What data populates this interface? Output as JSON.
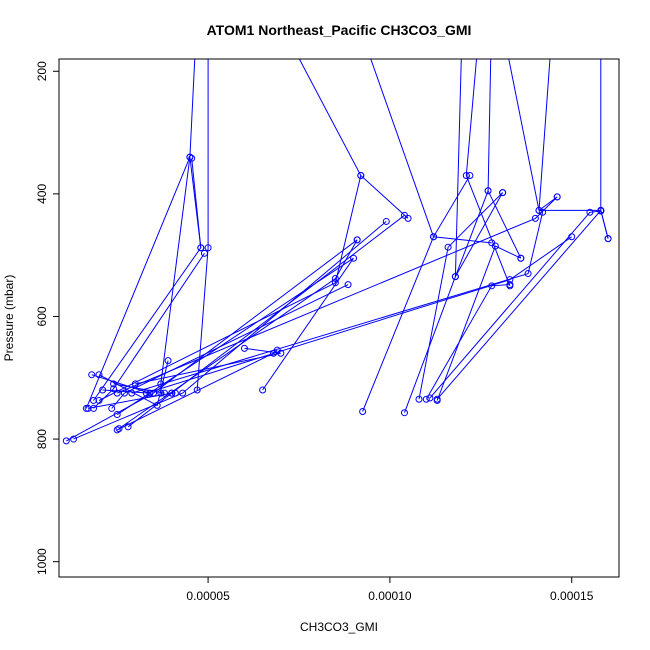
{
  "chart_data": {
    "type": "line",
    "title": "ATOM1 Northeast_Pacific CH3CO3_GMI",
    "xlabel": "CH3CO3_GMI",
    "ylabel": "Pressure (mbar)",
    "xlim": [
      9e-06,
      0.000163
    ],
    "ylim": [
      1025,
      180
    ],
    "y_reversed": true,
    "grid": false,
    "x_ticks": [
      5e-05,
      0.0001,
      0.00015
    ],
    "x_tick_labels": [
      "0.00005",
      "0.00010",
      "0.00015"
    ],
    "y_ticks": [
      200,
      400,
      600,
      800,
      1000
    ],
    "y_tick_labels": [
      "200",
      "400",
      "600",
      "800",
      "1000"
    ],
    "color": "#0000ff",
    "series": [
      {
        "x": [
          1.85e-05,
          2.4e-05,
          4.9e-05
        ],
        "y": [
          750,
          718,
          497
        ]
      },
      {
        "x": [
          1.65e-05,
          4.5e-05,
          4.8e-05
        ],
        "y": [
          750,
          340,
          488
        ]
      },
      {
        "x": [
          1.85e-05,
          4.8e-05,
          4.55e-05
        ],
        "y": [
          737,
          488,
          342
        ]
      },
      {
        "x": [
          2.35e-05,
          2.7e-05,
          8.85e-05
        ],
        "y": [
          750,
          725,
          548
        ]
      },
      {
        "x": [
          1.7e-05,
          4e-05,
          0.000104
        ],
        "y": [
          750,
          725,
          435
        ]
      },
      {
        "x": [
          1.3e-05,
          4.3e-05,
          9.9e-05
        ],
        "y": [
          800,
          725,
          445
        ]
      },
      {
        "x": [
          1.1e-05,
          3.5e-05,
          9.1e-05
        ],
        "y": [
          803,
          725,
          475
        ]
      },
      {
        "x": [
          2e-05,
          8.5e-05,
          9.2e-05
        ],
        "y": [
          737,
          545,
          370
        ]
      },
      {
        "x": [
          2.5e-05,
          9e-05,
          6.5e-05
        ],
        "y": [
          760,
          505,
          720
        ]
      },
      {
        "x": [
          2.55e-05,
          8.5e-05,
          9.1e-05
        ],
        "y": [
          783,
          538,
          475
        ]
      },
      {
        "x": [
          1.8e-05,
          3.4e-05,
          2.1e-05
        ],
        "y": [
          695,
          725,
          720
        ]
      },
      {
        "x": [
          2e-05,
          3.6e-05,
          3.9e-05
        ],
        "y": [
          695,
          745,
          672
        ]
      },
      {
        "x": [
          2.4e-05,
          3.8e-05,
          3.7e-05
        ],
        "y": [
          710,
          725,
          725
        ]
      },
      {
        "x": [
          3e-05,
          7e-05,
          6e-05
        ],
        "y": [
          710,
          660,
          652
        ]
      },
      {
        "x": [
          2.5e-05,
          6.8e-05,
          6.9e-05
        ],
        "y": [
          785,
          660,
          655
        ]
      },
      {
        "x": [
          2.8e-05,
          4e-05,
          4.1e-05
        ],
        "y": [
          780,
          725,
          725
        ]
      },
      {
        "x": [
          3.3e-05,
          0.000133,
          0.00015
        ],
        "y": [
          725,
          540,
          470
        ]
      },
      {
        "x": [
          2.9e-05,
          0.000138,
          0.000142
        ],
        "y": [
          725,
          530,
          430
        ]
      },
      {
        "x": [
          2.5e-05,
          0.00014,
          0.000146
        ],
        "y": [
          725,
          440,
          405
        ]
      },
      {
        "x": [
          9.25e-05,
          0.000112,
          0.000122
        ],
        "y": [
          755,
          470,
          370
        ]
      },
      {
        "x": [
          0.000104,
          0.000118,
          0.000127
        ],
        "y": [
          757,
          535,
          395
        ]
      },
      {
        "x": [
          0.000108,
          0.000116,
          0.000131
        ],
        "y": [
          735,
          487,
          398
        ]
      },
      {
        "x": [
          0.000113,
          0.000129,
          0.000136
        ],
        "y": [
          737,
          485,
          505
        ]
      },
      {
        "x": [
          0.00011,
          0.000128,
          0.000133
        ],
        "y": [
          735,
          550,
          548
        ]
      },
      {
        "x": [
          0.000113,
          0.000158,
          0.00016
        ],
        "y": [
          735,
          427,
          473
        ]
      },
      {
        "x": [
          0.000111,
          0.000155,
          0.000158
        ],
        "y": [
          733,
          430,
          428
        ]
      },
      {
        "x": [
          4.7e-05,
          4.5e-05,
          3.7e-05
        ],
        "y": [
          100,
          340,
          710
        ]
      },
      {
        "x": [
          5e-05,
          5e-05,
          4.7e-05
        ],
        "y": [
          100,
          488,
          720
        ]
      },
      {
        "x": [
          6.8e-05,
          9.2e-05,
          0.000105
        ],
        "y": [
          100,
          370,
          440
        ]
      },
      {
        "x": [
          9e-05,
          0.000112,
          0.000128
        ],
        "y": [
          100,
          470,
          480
        ]
      },
      {
        "x": [
          0.00012,
          0.000118,
          0.000131
        ],
        "y": [
          100,
          535,
          398
        ]
      },
      {
        "x": [
          0.000125,
          0.000121,
          0.000133
        ],
        "y": [
          100,
          370,
          550
        ]
      },
      {
        "x": [
          0.000128,
          0.000127,
          0.000136
        ],
        "y": [
          100,
          395,
          505
        ]
      },
      {
        "x": [
          0.00013,
          0.000141,
          0.000146
        ],
        "y": [
          100,
          427,
          405
        ]
      },
      {
        "x": [
          0.000145,
          0.000141,
          0.000158
        ],
        "y": [
          100,
          427,
          427
        ]
      },
      {
        "x": [
          0.000158,
          0.000158,
          0.00016
        ],
        "y": [
          100,
          427,
          473
        ]
      }
    ]
  }
}
